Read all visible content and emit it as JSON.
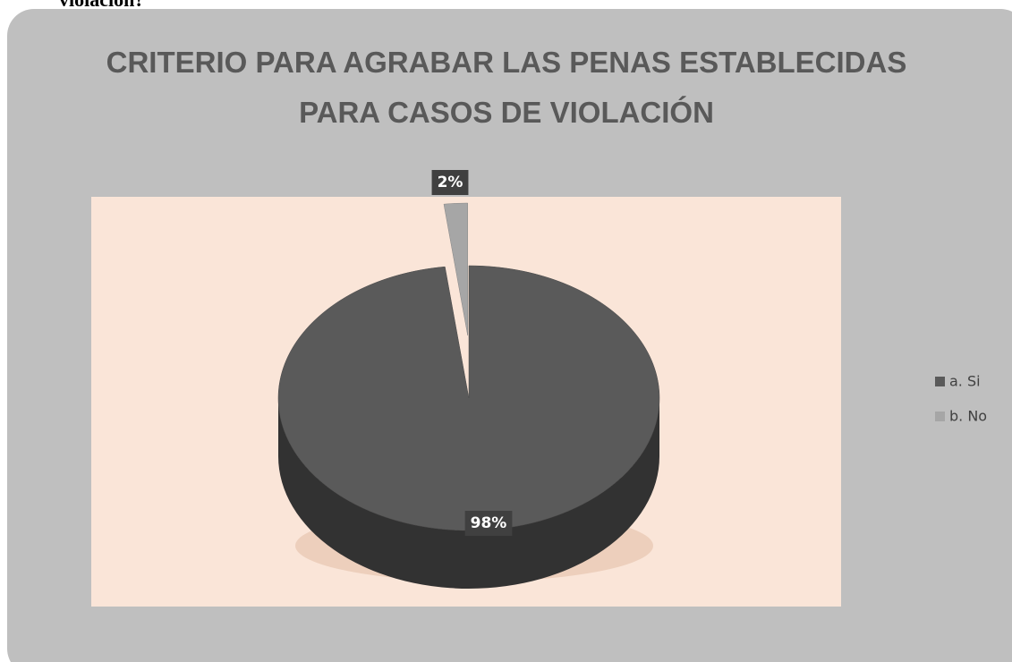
{
  "caption": "violación?",
  "chart_data": {
    "type": "pie",
    "title": "CRITERIO PARA AGRABAR LAS PENAS ESTABLECIDAS PARA CASOS DE VIOLACIÓN",
    "categories": [
      "a. Si",
      "b. No"
    ],
    "values": [
      98,
      2
    ],
    "value_labels": [
      "98%",
      "2%"
    ],
    "colors": [
      "#5a5a5a",
      "#a6a6a6"
    ],
    "legend": "right"
  }
}
